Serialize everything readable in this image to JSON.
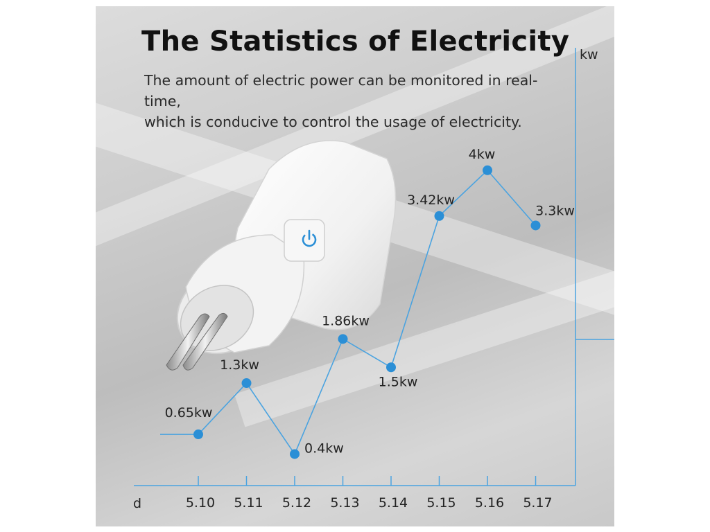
{
  "title": "The Statistics of Electricity",
  "subtitle_line1": "The amount of electric power can be monitored in real-time,",
  "subtitle_line2": "which is conducive to control the usage of electricity.",
  "colors": {
    "accent": "#2b8fd6",
    "line": "#4aa3e0",
    "text": "#222222"
  },
  "chart_data": {
    "type": "line",
    "xlabel": "d",
    "ylabel": "kw",
    "categories": [
      "5.10",
      "5.11",
      "5.12",
      "5.13",
      "5.14",
      "5.15",
      "5.16",
      "5.17"
    ],
    "values": [
      0.65,
      1.3,
      0.4,
      1.86,
      1.5,
      3.42,
      4,
      3.3
    ],
    "value_labels": [
      "0.65kw",
      "1.3kw",
      "0.4kw",
      "1.86kw",
      "1.5kw",
      "3.42kw",
      "4kw",
      "3.3kw"
    ],
    "grid": false,
    "legend": "none"
  }
}
